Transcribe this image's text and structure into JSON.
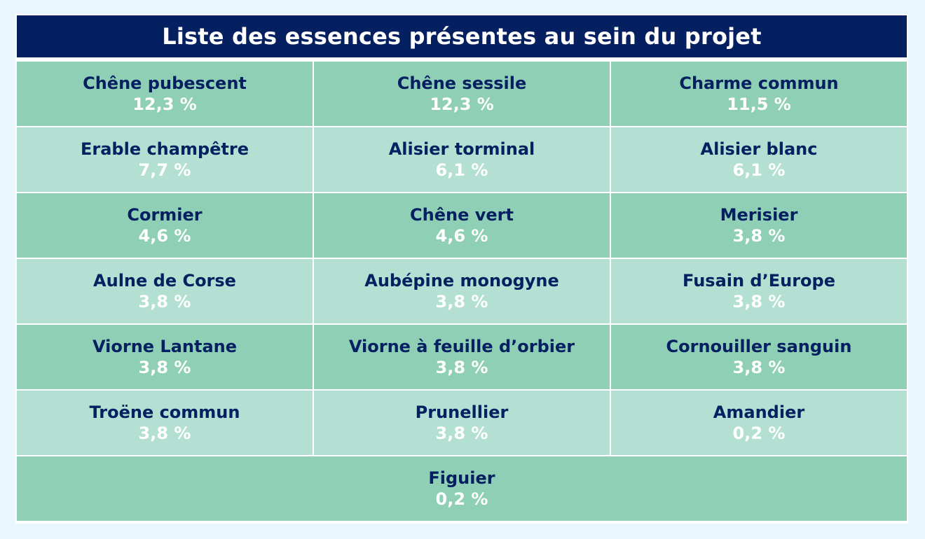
{
  "colors": {
    "page_background": "#eaf6fd",
    "title_background": "#052061",
    "title_text": "#ffffff",
    "row_dark": "#8ecfb5",
    "row_light": "#b3e0d3",
    "name_text": "#052061",
    "percent_text": "#ffffff"
  },
  "table": {
    "title": "Liste des essences présentes au sein du projet",
    "rows": [
      [
        {
          "name": "Chêne pubescent",
          "percent": "12,3 %"
        },
        {
          "name": "Chêne sessile",
          "percent": "12,3 %"
        },
        {
          "name": "Charme commun",
          "percent": "11,5 %"
        }
      ],
      [
        {
          "name": "Erable champêtre",
          "percent": "7,7 %"
        },
        {
          "name": "Alisier torminal",
          "percent": "6,1 %"
        },
        {
          "name": "Alisier blanc",
          "percent": "6,1 %"
        }
      ],
      [
        {
          "name": "Cormier",
          "percent": "4,6 %"
        },
        {
          "name": "Chêne vert",
          "percent": "4,6 %"
        },
        {
          "name": "Merisier",
          "percent": "3,8 %"
        }
      ],
      [
        {
          "name": "Aulne de Corse",
          "percent": "3,8 %"
        },
        {
          "name": "Aubépine monogyne",
          "percent": "3,8 %"
        },
        {
          "name": "Fusain d’Europe",
          "percent": "3,8 %"
        }
      ],
      [
        {
          "name": "Viorne Lantane",
          "percent": "3,8 %"
        },
        {
          "name": "Viorne à feuille d’orbier",
          "percent": "3,8 %"
        },
        {
          "name": "Cornouiller sanguin",
          "percent": "3,8 %"
        }
      ],
      [
        {
          "name": "Troëne commun",
          "percent": "3,8 %"
        },
        {
          "name": "Prunellier",
          "percent": "3,8 %"
        },
        {
          "name": "Amandier",
          "percent": "0,2 %"
        }
      ],
      [
        {
          "name": "Figuier",
          "percent": "0,2 %"
        }
      ]
    ]
  }
}
